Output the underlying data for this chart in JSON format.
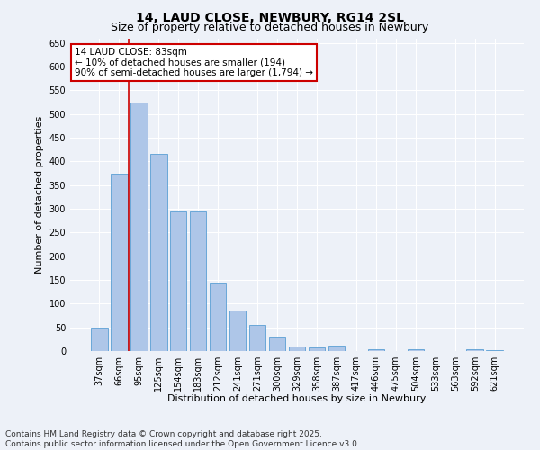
{
  "title": "14, LAUD CLOSE, NEWBURY, RG14 2SL",
  "subtitle": "Size of property relative to detached houses in Newbury",
  "xlabel": "Distribution of detached houses by size in Newbury",
  "ylabel": "Number of detached properties",
  "footer_line1": "Contains HM Land Registry data © Crown copyright and database right 2025.",
  "footer_line2": "Contains public sector information licensed under the Open Government Licence v3.0.",
  "categories": [
    "37sqm",
    "66sqm",
    "95sqm",
    "125sqm",
    "154sqm",
    "183sqm",
    "212sqm",
    "241sqm",
    "271sqm",
    "300sqm",
    "329sqm",
    "358sqm",
    "387sqm",
    "417sqm",
    "446sqm",
    "475sqm",
    "504sqm",
    "533sqm",
    "563sqm",
    "592sqm",
    "621sqm"
  ],
  "values": [
    50,
    375,
    525,
    415,
    295,
    295,
    145,
    85,
    55,
    30,
    10,
    7,
    12,
    0,
    3,
    0,
    3,
    0,
    0,
    4,
    2
  ],
  "bar_color": "#aec6e8",
  "bar_edge_color": "#5a9fd4",
  "vline_color": "#cc0000",
  "annotation_text": "14 LAUD CLOSE: 83sqm\n← 10% of detached houses are smaller (194)\n90% of semi-detached houses are larger (1,794) →",
  "annotation_box_facecolor": "#ffffff",
  "annotation_box_edgecolor": "#cc0000",
  "ylim": [
    0,
    660
  ],
  "yticks": [
    0,
    50,
    100,
    150,
    200,
    250,
    300,
    350,
    400,
    450,
    500,
    550,
    600,
    650
  ],
  "background_color": "#edf1f8",
  "plot_background_color": "#edf1f8",
  "grid_color": "#ffffff",
  "title_fontsize": 10,
  "subtitle_fontsize": 9,
  "axis_label_fontsize": 8,
  "tick_fontsize": 7,
  "footer_fontsize": 6.5
}
